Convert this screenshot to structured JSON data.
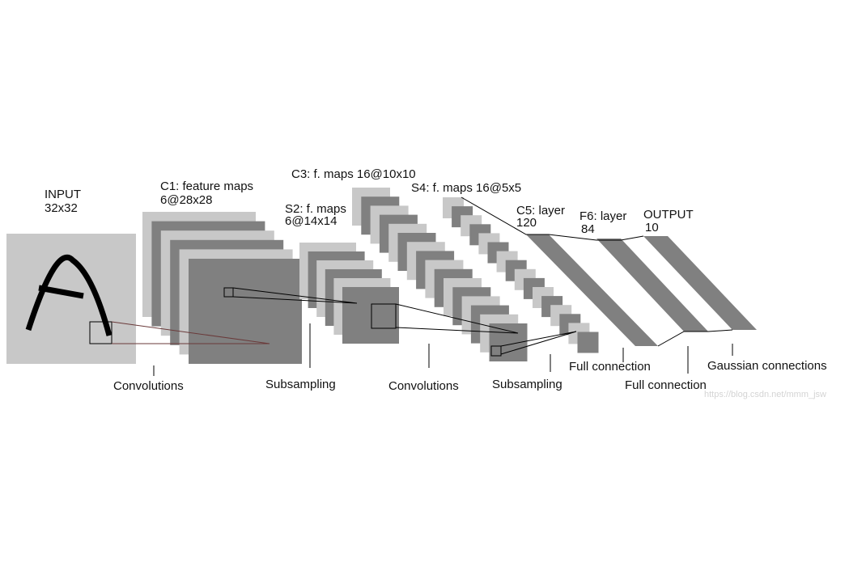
{
  "layers": [
    {
      "name": "INPUT",
      "size": "32x32"
    },
    {
      "name": "C1: feature maps",
      "size": "6@28x28"
    },
    {
      "name": "S2: f. maps",
      "size": "6@14x14"
    },
    {
      "name": "C3: f. maps 16@10x10"
    },
    {
      "name": "S4: f. maps 16@5x5"
    },
    {
      "name": "C5: layer",
      "size": "120"
    },
    {
      "name": "F6: layer",
      "size": "84"
    },
    {
      "name": "OUTPUT",
      "size": "10"
    }
  ],
  "operations": [
    "Convolutions",
    "Subsampling",
    "Convolutions",
    "Subsampling",
    "Full connection",
    "Full connection",
    "Gaussian connections"
  ],
  "watermark": "https://blog.csdn.net/mmm_jsw"
}
